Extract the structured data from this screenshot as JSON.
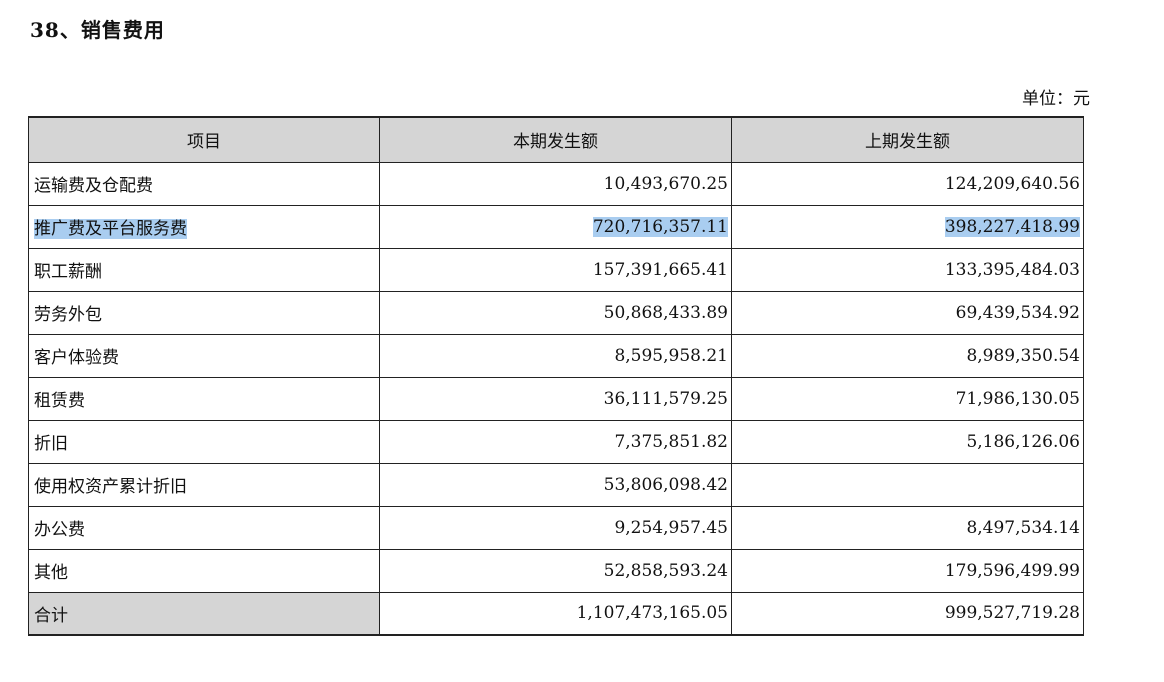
{
  "title": "38、销售费用",
  "unit": "单位：元",
  "headers": [
    "项目",
    "本期发生额",
    "上期发生额"
  ],
  "rows": [
    {
      "item": "运输费及仓配费",
      "current": "10,493,670.25",
      "prior": "124,209,640.56"
    },
    {
      "item": "推广费及平台服务费",
      "current": "720,716,357.11",
      "prior": "398,227,418.99"
    },
    {
      "item": "职工薪酬",
      "current": "157,391,665.41",
      "prior": "133,395,484.03"
    },
    {
      "item": "劳务外包",
      "current": "50,868,433.89",
      "prior": "69,439,534.92"
    },
    {
      "item": "客户体验费",
      "current": "8,595,958.21",
      "prior": "8,989,350.54"
    },
    {
      "item": "租赁费",
      "current": "36,111,579.25",
      "prior": "71,986,130.05"
    },
    {
      "item": "折旧",
      "current": "7,375,851.82",
      "prior": "5,186,126.06"
    },
    {
      "item": "使用权资产累计折旧",
      "current": "53,806,098.42",
      "prior": ""
    },
    {
      "item": "办公费",
      "current": "9,254,957.45",
      "prior": "8,497,534.14"
    },
    {
      "item": "其他",
      "current": "52,858,593.24",
      "prior": "179,596,499.99"
    },
    {
      "item": "合计",
      "current": "1,107,473,165.05",
      "prior": "999,527,719.28"
    }
  ],
  "highlight_color": "#a9cdf0",
  "header_bg": "#d5d5d5"
}
